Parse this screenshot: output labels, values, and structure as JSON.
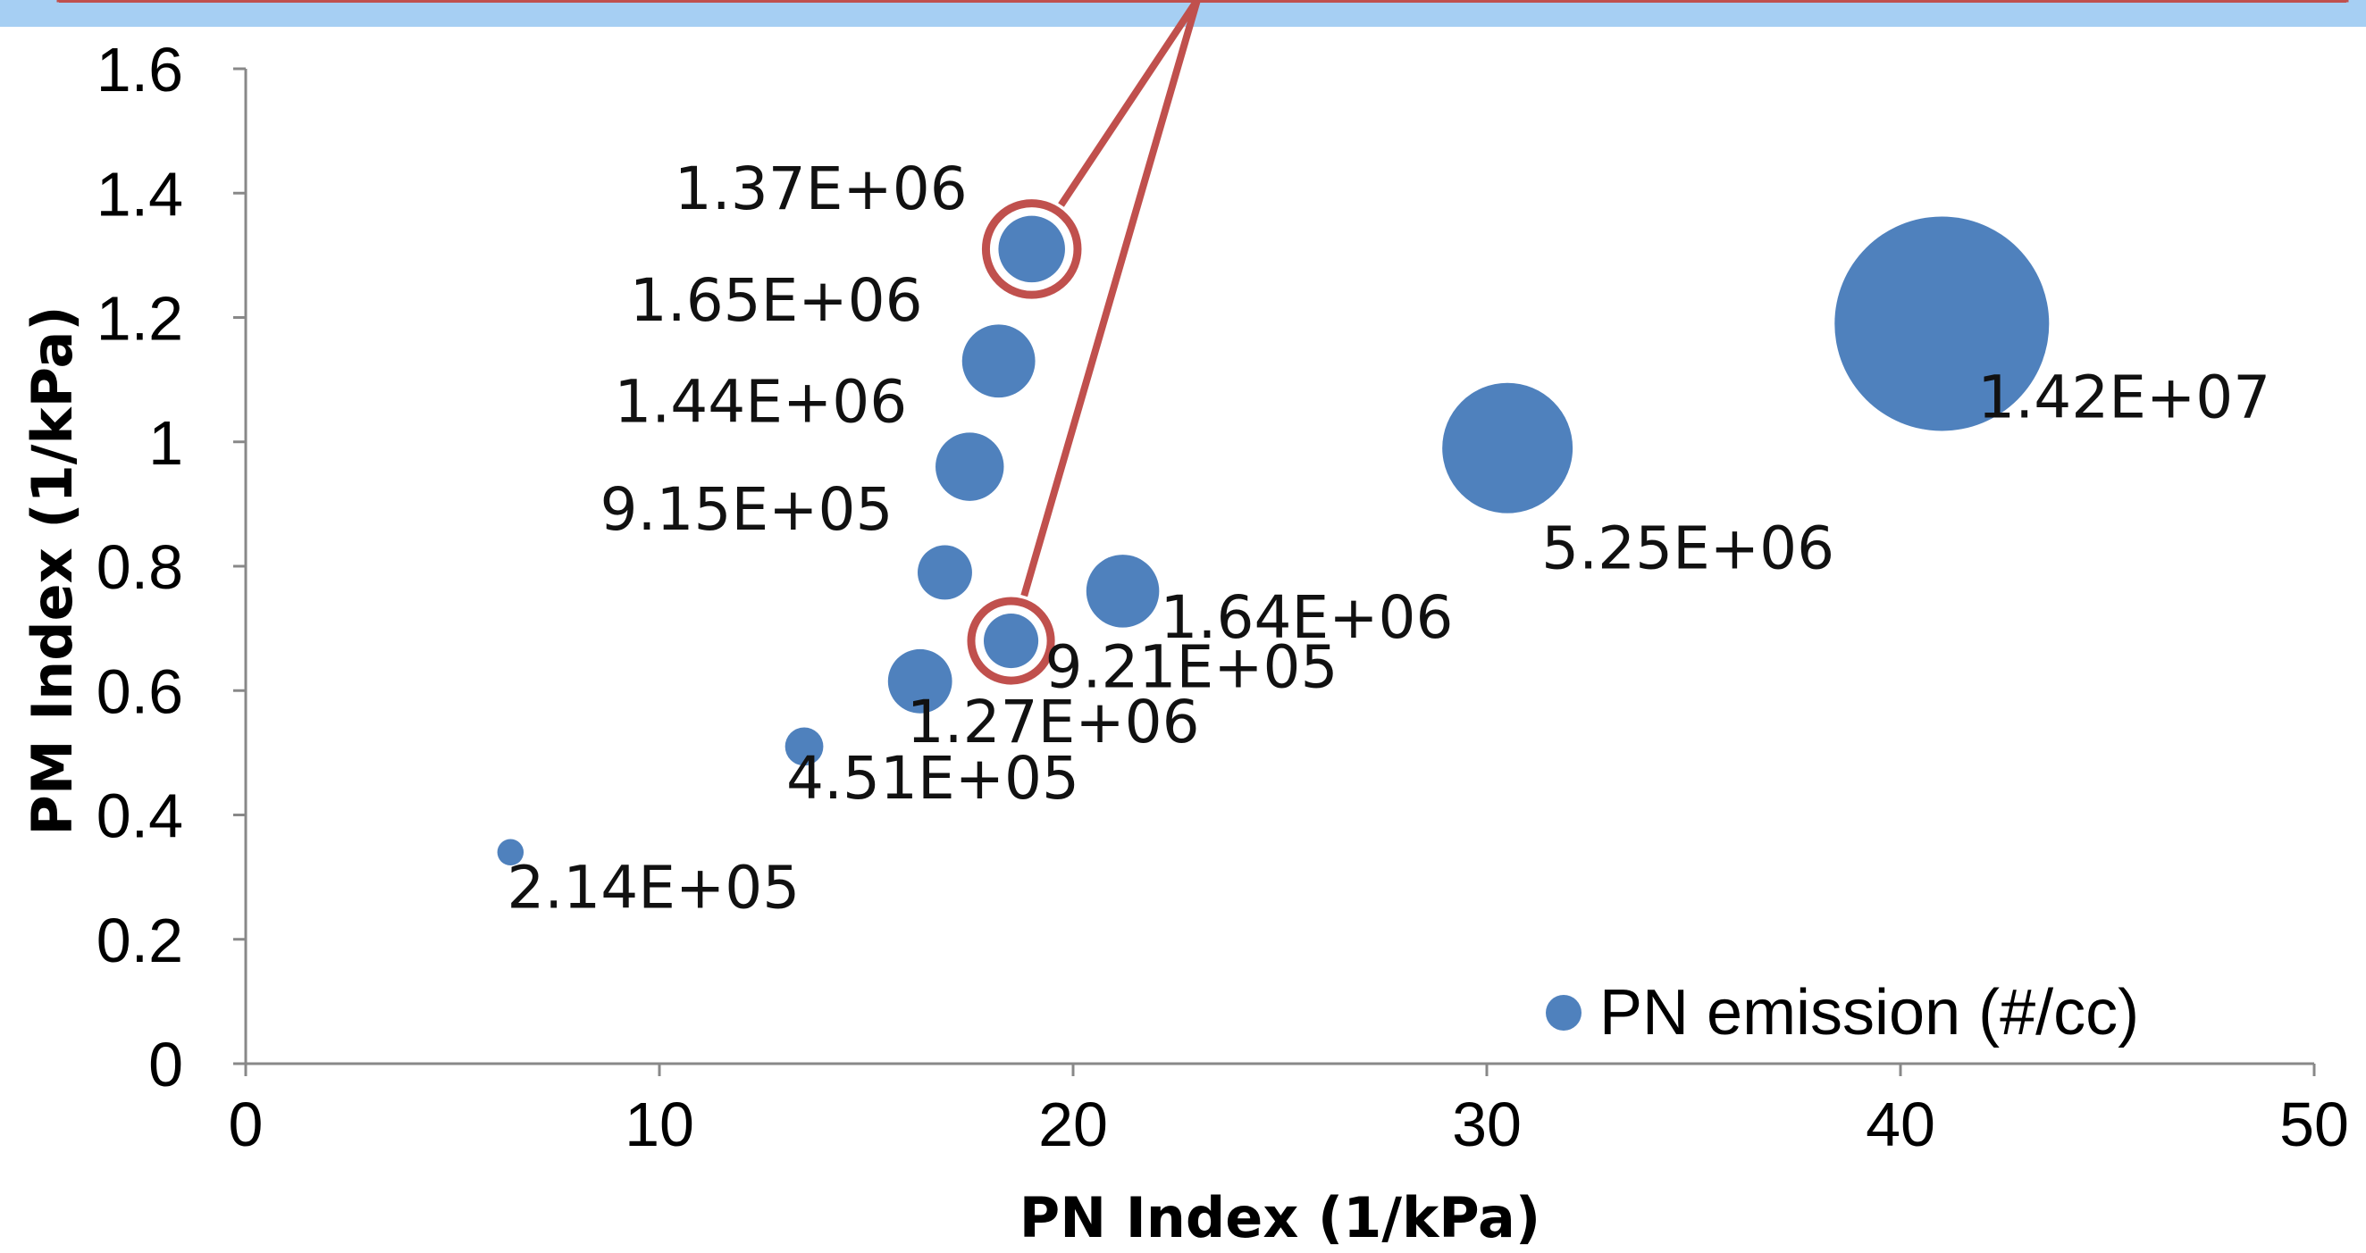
{
  "chart_data": {
    "type": "scatter",
    "xlabel": "PN Index (1/kPa)",
    "ylabel": "PM Index (1/kPa)",
    "xlim": [
      0,
      50
    ],
    "ylim": [
      0,
      1.6
    ],
    "x_ticks": [
      "0",
      "10",
      "20",
      "30",
      "40",
      "50"
    ],
    "y_ticks": [
      "0",
      "0.2",
      "0.4",
      "0.6",
      "0.8",
      "1",
      "1.2",
      "1.4",
      "1.6"
    ],
    "grid": false,
    "legend_position": "bottom-right",
    "series": [
      {
        "name": "PN emission (#/cc)",
        "color": "#4f81bd",
        "points": [
          {
            "x": 6.4,
            "y": 0.34,
            "size": 214000,
            "label": "2.14E+05"
          },
          {
            "x": 13.5,
            "y": 0.51,
            "size": 451000,
            "label": "4.51E+05"
          },
          {
            "x": 16.3,
            "y": 0.615,
            "size": 1270000,
            "label": "1.27E+06"
          },
          {
            "x": 18.5,
            "y": 0.68,
            "size": 921000,
            "label": "9.21E+05"
          },
          {
            "x": 21.2,
            "y": 0.76,
            "size": 1640000,
            "label": "1.64E+06"
          },
          {
            "x": 16.9,
            "y": 0.79,
            "size": 915000,
            "label": "9.15E+05"
          },
          {
            "x": 17.5,
            "y": 0.96,
            "size": 1440000,
            "label": "1.44E+06"
          },
          {
            "x": 18.2,
            "y": 1.13,
            "size": 1650000,
            "label": "1.65E+06"
          },
          {
            "x": 19.0,
            "y": 1.31,
            "size": 1370000,
            "label": "1.37E+06"
          },
          {
            "x": 30.5,
            "y": 0.99,
            "size": 5250000,
            "label": "5.25E+06"
          },
          {
            "x": 41.0,
            "y": 1.19,
            "size": 14200000,
            "label": "1.42E+07"
          }
        ]
      }
    ],
    "highlighted_points": [
      "1.37E+06",
      "9.21E+05"
    ],
    "highlight_color": "#c0504d",
    "banner_color": "#a6cff3"
  }
}
